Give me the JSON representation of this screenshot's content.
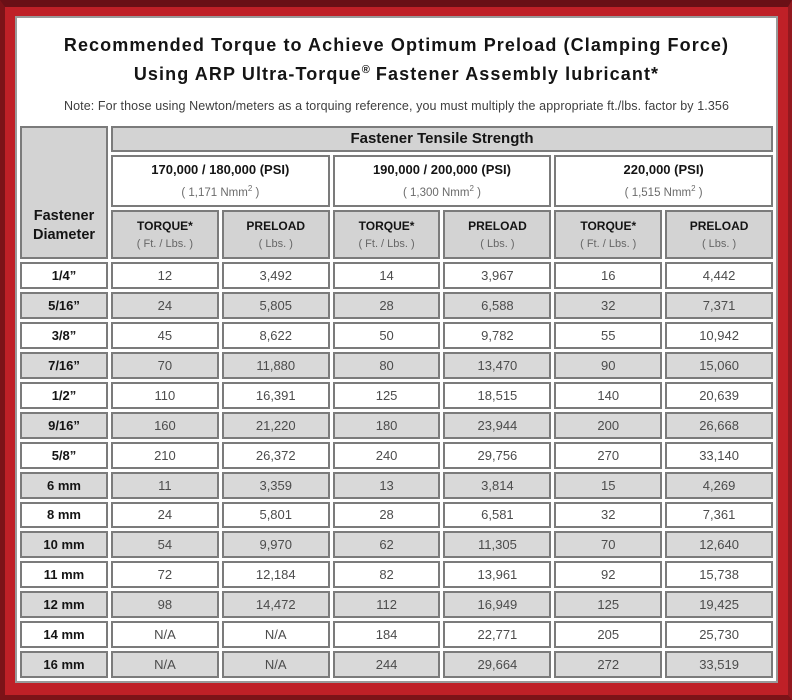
{
  "header": {
    "title_line1": "Recommended Torque to Achieve Optimum Preload (Clamping Force)",
    "title_line2_main": "Using ARP Ultra-Torque",
    "title_line2_reg": "®",
    "title_line2_tail": " Fastener Assembly lubricant*",
    "note": "Note: For those using Newton/meters as a torquing reference, you must multiply the appropriate ft./lbs. factor by 1.356"
  },
  "table": {
    "tensile_strength_header": "Fastener Tensile Strength",
    "diameter_header_line1": "Fastener",
    "diameter_header_line2": "Diameter",
    "column_headers": {
      "torque_label": "TORQUE*",
      "torque_unit": "( Ft. / Lbs. )",
      "preload_label": "PRELOAD",
      "preload_unit": "( Lbs. )"
    },
    "strength_groups": [
      {
        "psi_label": "170,000 / 180,000 (PSI)",
        "nmm_open": "( 1,171 Nmm",
        "nmm_sup": "2",
        "nmm_close": " )"
      },
      {
        "psi_label": "190,000 / 200,000 (PSI)",
        "nmm_open": "( 1,300 Nmm",
        "nmm_sup": "2",
        "nmm_close": " )"
      },
      {
        "psi_label": "220,000 (PSI)",
        "nmm_open": "( 1,515 Nmm",
        "nmm_sup": "2",
        "nmm_close": " )"
      }
    ],
    "rows": [
      {
        "diameter": "1/4”",
        "values": [
          "12",
          "3,492",
          "14",
          "3,967",
          "16",
          "4,442"
        ]
      },
      {
        "diameter": "5/16”",
        "values": [
          "24",
          "5,805",
          "28",
          "6,588",
          "32",
          "7,371"
        ]
      },
      {
        "diameter": "3/8”",
        "values": [
          "45",
          "8,622",
          "50",
          "9,782",
          "55",
          "10,942"
        ]
      },
      {
        "diameter": "7/16”",
        "values": [
          "70",
          "11,880",
          "80",
          "13,470",
          "90",
          "15,060"
        ]
      },
      {
        "diameter": "1/2”",
        "values": [
          "110",
          "16,391",
          "125",
          "18,515",
          "140",
          "20,639"
        ]
      },
      {
        "diameter": "9/16”",
        "values": [
          "160",
          "21,220",
          "180",
          "23,944",
          "200",
          "26,668"
        ]
      },
      {
        "diameter": "5/8”",
        "values": [
          "210",
          "26,372",
          "240",
          "29,756",
          "270",
          "33,140"
        ]
      },
      {
        "diameter": "6 mm",
        "values": [
          "11",
          "3,359",
          "13",
          "3,814",
          "15",
          "4,269"
        ]
      },
      {
        "diameter": "8 mm",
        "values": [
          "24",
          "5,801",
          "28",
          "6,581",
          "32",
          "7,361"
        ]
      },
      {
        "diameter": "10 mm",
        "values": [
          "54",
          "9,970",
          "62",
          "11,305",
          "70",
          "12,640"
        ]
      },
      {
        "diameter": "11 mm",
        "values": [
          "72",
          "12,184",
          "82",
          "13,961",
          "92",
          "15,738"
        ]
      },
      {
        "diameter": "12 mm",
        "values": [
          "98",
          "14,472",
          "112",
          "16,949",
          "125",
          "19,425"
        ]
      },
      {
        "diameter": "14 mm",
        "values": [
          "N/A",
          "N/A",
          "184",
          "22,771",
          "205",
          "25,730"
        ]
      },
      {
        "diameter": "16 mm",
        "values": [
          "N/A",
          "N/A",
          "244",
          "29,664",
          "272",
          "33,519"
        ]
      }
    ]
  },
  "colors": {
    "frame_red": "#bf2027",
    "frame_dark_border": "#6a1016",
    "header_gray": "#d3d3d3",
    "stripe_gray": "#d9d9d9",
    "cell_border_gray": "#7b7b7b"
  }
}
